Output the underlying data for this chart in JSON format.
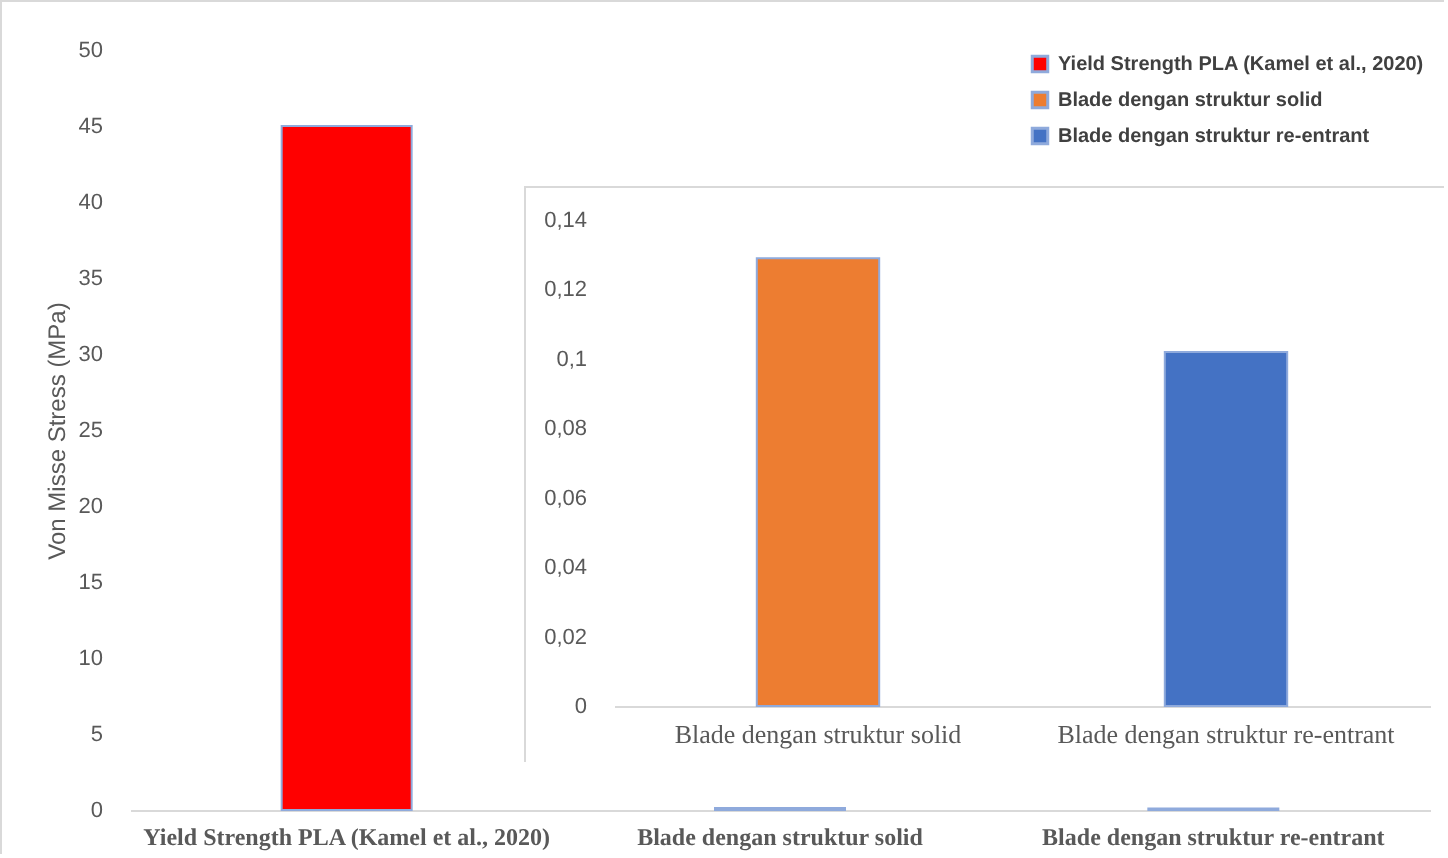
{
  "chart_data": [
    {
      "type": "bar",
      "categories": [
        "Yield Strength PLA (Kamel et al., 2020)",
        "Blade dengan struktur solid",
        "Blade dengan struktur re-entrant"
      ],
      "series": [
        {
          "name": "Yield Strength PLA (Kamel et al., 2020)",
          "color": "#ff0000",
          "values": [
            45,
            null,
            null
          ]
        },
        {
          "name": "Blade dengan struktur solid",
          "color": "#ed7d31",
          "values": [
            null,
            0.129,
            null
          ]
        },
        {
          "name": "Blade dengan struktur re-entrant",
          "color": "#4472c4",
          "values": [
            null,
            null,
            0.102
          ]
        }
      ],
      "ylabel": "Von Misse Stress (MPa)",
      "ylim": [
        0,
        50
      ],
      "yticks": [
        0,
        5,
        10,
        15,
        20,
        25,
        30,
        35,
        40,
        45,
        50
      ],
      "legend": "top right"
    },
    {
      "type": "bar",
      "categories": [
        "Blade dengan struktur solid",
        "Blade dengan struktur re-entrant"
      ],
      "values": [
        0.129,
        0.102
      ],
      "colors": [
        "#ed7d31",
        "#4472c4"
      ],
      "ylim": [
        0,
        0.14
      ],
      "yticks": [
        0,
        {
          "value": 0.02,
          "label": "0,02"
        },
        {
          "value": 0.04,
          "label": "0,04"
        },
        {
          "value": 0.06,
          "label": "0,06"
        },
        {
          "value": 0.08,
          "label": "0,08"
        },
        {
          "value": 0.1,
          "label": "0,1"
        },
        {
          "value": 0.12,
          "label": "0,12"
        },
        {
          "value": 0.14,
          "label": "0,14"
        }
      ]
    }
  ]
}
